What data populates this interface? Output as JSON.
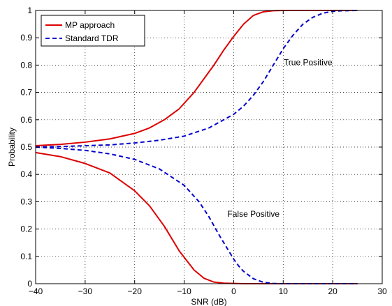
{
  "chart_data": {
    "type": "line",
    "title": "",
    "xlabel": "SNR (dB)",
    "ylabel": "Probability",
    "xlim": [
      -40,
      30
    ],
    "ylim": [
      0,
      1
    ],
    "xticks": [
      -40,
      -30,
      -20,
      -10,
      0,
      10,
      20,
      30
    ],
    "xtick_labels": [
      "−40",
      "−30",
      "−20",
      "−10",
      "0",
      "10",
      "20",
      "30"
    ],
    "yticks": [
      0,
      0.1,
      0.2,
      0.3,
      0.4,
      0.5,
      0.6,
      0.7,
      0.8,
      0.9,
      1
    ],
    "ytick_labels": [
      "0",
      "0.1",
      "0.2",
      "0.3",
      "0.4",
      "0.5",
      "0.6",
      "0.7",
      "0.8",
      "0.9",
      "1"
    ],
    "grid": true,
    "legend_position": "top-left",
    "series": [
      {
        "name": "MP approach",
        "color": "#dd0000",
        "style": "solid",
        "show_in_legend": true,
        "x": [
          -40,
          -35,
          -30,
          -25,
          -20,
          -17,
          -14,
          -11,
          -8,
          -6,
          -4,
          -2,
          0,
          2,
          4,
          6,
          8,
          10,
          15,
          20,
          25
        ],
        "y": [
          0.505,
          0.51,
          0.518,
          0.53,
          0.55,
          0.57,
          0.6,
          0.64,
          0.7,
          0.75,
          0.8,
          0.855,
          0.905,
          0.95,
          0.982,
          0.995,
          0.999,
          1,
          1,
          1,
          1
        ]
      },
      {
        "name": "MP approach",
        "color": "#dd0000",
        "style": "solid",
        "show_in_legend": false,
        "x": [
          -40,
          -35,
          -30,
          -25,
          -20,
          -17,
          -14,
          -11,
          -8,
          -6,
          -4,
          -2,
          0,
          2,
          4,
          6,
          8,
          10,
          15,
          20,
          25
        ],
        "y": [
          0.48,
          0.465,
          0.44,
          0.405,
          0.34,
          0.285,
          0.21,
          0.12,
          0.05,
          0.02,
          0.006,
          0.002,
          0.001,
          0,
          0,
          0,
          0,
          0,
          0,
          0,
          0
        ]
      },
      {
        "name": "Standard TDR",
        "color": "#0000cc",
        "style": "dashed",
        "show_in_legend": true,
        "x": [
          -40,
          -35,
          -30,
          -25,
          -20,
          -15,
          -10,
          -5,
          -2,
          0,
          2,
          4,
          6,
          8,
          10,
          12,
          14,
          16,
          18,
          20,
          22,
          25
        ],
        "y": [
          0.5,
          0.502,
          0.505,
          0.508,
          0.515,
          0.525,
          0.54,
          0.57,
          0.6,
          0.62,
          0.65,
          0.69,
          0.74,
          0.8,
          0.86,
          0.91,
          0.95,
          0.975,
          0.99,
          0.997,
          0.999,
          1
        ]
      },
      {
        "name": "Standard TDR",
        "color": "#0000cc",
        "style": "dashed",
        "show_in_legend": false,
        "x": [
          -40,
          -35,
          -30,
          -25,
          -20,
          -15,
          -10,
          -7,
          -5,
          -3,
          -1,
          0,
          1,
          2,
          4,
          6,
          8,
          10,
          15,
          20,
          25
        ],
        "y": [
          0.5,
          0.495,
          0.488,
          0.475,
          0.455,
          0.42,
          0.36,
          0.3,
          0.245,
          0.18,
          0.12,
          0.09,
          0.065,
          0.045,
          0.018,
          0.005,
          0.001,
          0,
          0,
          0,
          0
        ]
      }
    ],
    "annotations": [
      {
        "text": "True Positive",
        "x": 15,
        "y": 0.81
      },
      {
        "text": "False Positive",
        "x": 4,
        "y": 0.255
      }
    ]
  }
}
